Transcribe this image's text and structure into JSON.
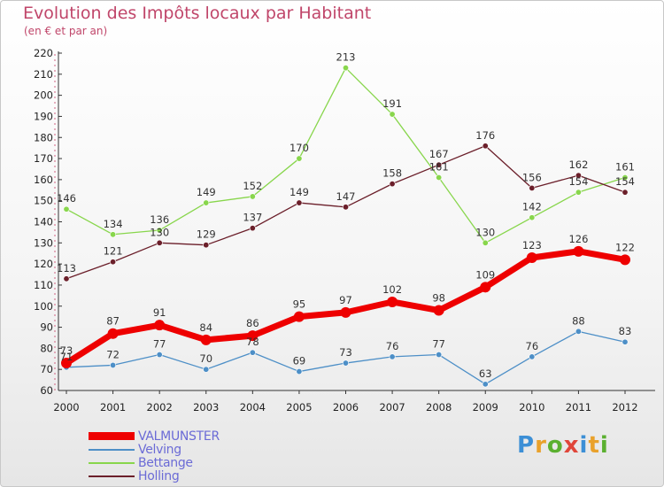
{
  "chart_data": {
    "type": "line",
    "title": "Evolution des Impôts locaux par Habitant",
    "subtitle": "(en € et par an)",
    "xlabel": "",
    "ylabel": "",
    "x": [
      "2000",
      "2001",
      "2002",
      "2003",
      "2004",
      "2005",
      "2006",
      "2007",
      "2008",
      "2009",
      "2010",
      "2011",
      "2012"
    ],
    "ylim": [
      60,
      220
    ],
    "yticks": [
      60,
      70,
      80,
      90,
      100,
      110,
      120,
      130,
      140,
      150,
      160,
      170,
      180,
      190,
      200,
      210,
      220
    ],
    "grid": false,
    "legend_position": "bottom-left",
    "series": [
      {
        "name": "VALMUNSTER",
        "color": "#ee0000",
        "values": [
          73,
          87,
          91,
          84,
          86,
          95,
          97,
          102,
          98,
          109,
          123,
          126,
          122
        ]
      },
      {
        "name": "Velving",
        "color": "#4d8fc7",
        "values": [
          71,
          72,
          77,
          70,
          78,
          69,
          73,
          76,
          77,
          63,
          76,
          88,
          83
        ]
      },
      {
        "name": "Bettange",
        "color": "#88d64c",
        "values": [
          146,
          134,
          136,
          149,
          152,
          170,
          213,
          191,
          161,
          130,
          142,
          154,
          161
        ]
      },
      {
        "name": "Holling",
        "color": "#6b1f2a",
        "values": [
          113,
          121,
          130,
          129,
          137,
          149,
          147,
          158,
          167,
          176,
          156,
          162,
          154
        ]
      }
    ]
  },
  "logo": {
    "letters": [
      "P",
      "r",
      "o",
      "x",
      "i",
      "t",
      "i"
    ]
  }
}
